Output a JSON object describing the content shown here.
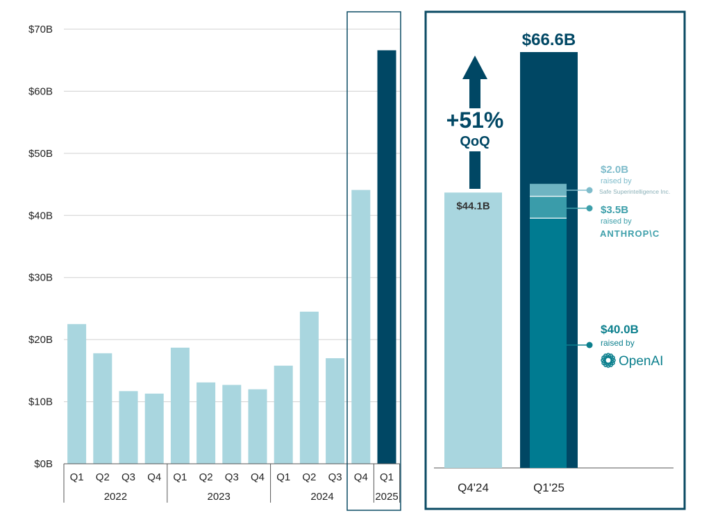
{
  "colors": {
    "light_bar": "#a9d6df",
    "dark_bar": "#004764",
    "openai_bar": "#007b91",
    "anthropic_bar": "#3a9caa",
    "ssi_bar": "#6fb4c2",
    "grid": "#d0d0d0",
    "frame": "#0a4a63",
    "openai_text": "#0b7f8d",
    "ssi_text": "#7fbccb",
    "anthropic_text": "#3d9faa"
  },
  "chart_data": [
    {
      "type": "bar",
      "ylim": [
        0,
        70
      ],
      "yticks": [
        {
          "value": 0,
          "label": "$0B"
        },
        {
          "value": 10,
          "label": "$10B"
        },
        {
          "value": 20,
          "label": "$20B"
        },
        {
          "value": 30,
          "label": "$30B"
        },
        {
          "value": 40,
          "label": "$40B"
        },
        {
          "value": 50,
          "label": "$50B"
        },
        {
          "value": 60,
          "label": "$60B"
        },
        {
          "value": 70,
          "label": "$70B"
        }
      ],
      "grid": true,
      "categories": [
        "Q1",
        "Q2",
        "Q3",
        "Q4",
        "Q1",
        "Q2",
        "Q3",
        "Q4",
        "Q1",
        "Q2",
        "Q3",
        "Q4",
        "Q1"
      ],
      "values": [
        22.5,
        17.8,
        11.7,
        11.3,
        18.7,
        13.1,
        12.7,
        12.0,
        15.8,
        24.5,
        17.0,
        44.1,
        66.6
      ],
      "highlight_last": true,
      "year_groups": [
        {
          "label": "2022",
          "count": 4
        },
        {
          "label": "2023",
          "count": 4
        },
        {
          "label": "2024",
          "count": 4
        },
        {
          "label": "2025",
          "count": 1
        }
      ]
    },
    {
      "type": "bar",
      "stacked": true,
      "ylim": [
        0,
        70
      ],
      "categories": [
        "Q4'24",
        "Q1'25"
      ],
      "totals": [
        44.1,
        66.6
      ],
      "total_labels": [
        "$44.1B",
        "$66.6B"
      ],
      "segments": [
        {
          "name": "OpenAI",
          "value": 40.0,
          "label": "$40.0B",
          "caption": "raised by",
          "brand": "OpenAI"
        },
        {
          "name": "Anthropic",
          "value": 3.5,
          "label": "$3.5B",
          "caption": "raised by",
          "brand": "ANTHROP\\C"
        },
        {
          "name": "Safe Superintelligence Inc.",
          "value": 2.0,
          "label": "$2.0B",
          "caption": "raised by",
          "brand": "Safe Superintelligence Inc."
        }
      ],
      "growth": {
        "value": "+51%",
        "label": "QoQ"
      }
    }
  ]
}
